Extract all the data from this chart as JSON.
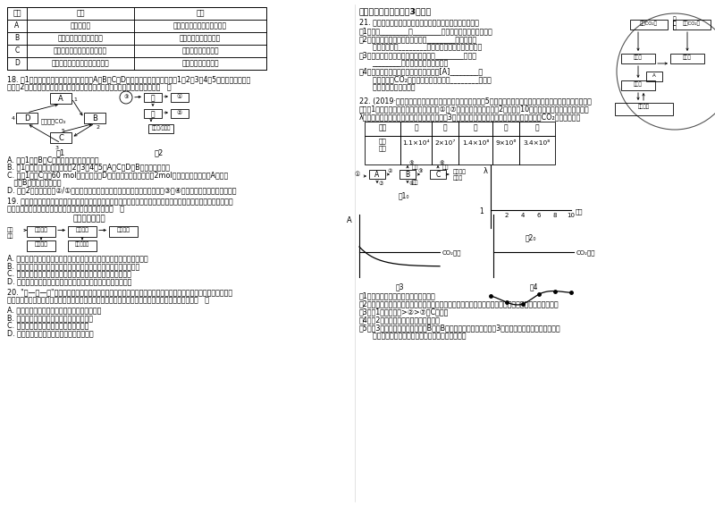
{
  "background_color": "#ffffff",
  "figsize": [
    8.0,
    5.66
  ],
  "dpi": 100,
  "table1_headers": [
    "选项",
    "方案",
    "目的"
  ],
  "table1_rows": [
    [
      "A",
      "建立沼气池",
      "有利于物质和能量的多级利用"
    ],
    [
      "B",
      "体外诱导胚胎干细胞分化",
      "培育供移植的组织器官"
    ],
    [
      "C",
      "培育试管苗、试管牛和克隆羊",
      "能保持全部母本性状"
    ],
    [
      "D",
      "用蛋白酶处理刚样的动物组织块",
      "制备动物细胞悬浮液"
    ]
  ],
  "q18_line1": "18. 图1是某生态系统碳循环示意图，其中A、B、C、D是生态系统内各生物成分，1、2、3、4、5表示有关的生理过",
  "q18_line2": "程。图2为该生态系统中某一食物链及各部分能量流动情况，下列说法错误的是（   ）",
  "q18_opts": [
    "A. 在图1中，B、C分别属于分解者、生产者",
    "B. 图1中表示呼吸作用过程的是2、3、4、5，A、C、D为B提供物质和能量",
    "C. 若图1中的C产生60 mol氧气，则流入D的能量一般不超过相当于2mol葡萄糖的能量；如果A发生癌",
    "   变，B的数量将不断增加",
    "D. 在图2的食物链中，②/①的比值代表兔与狼（生物之间）的能量传递效率；③和④分别是草和兔同化量的一部分"
  ],
  "q19_line1": "19. 随着城市化的发展，城市水污染问题日益突出，建立人工湿地公园是解决城市水污染的一种有效途径。下图是人工",
  "q19_line2": "湿地处理城市污水的示意图，则下列有关说法正确的是（   ）",
  "q19_diagram_title": "人工湿地示意图",
  "q19_opts": [
    "A. 批水植物严重在湿地边沿随随枯地高低分布不同，属于群落的垂直结构",
    "B. 流经该生态系统的总能量是大于该系统生产者所固定的全部太阳能",
    "C. 绿藻、黑藻可吸化降低污水中有机物，并用于自身的光合作用",
    "D. 人工湿地净化污水时，体现了该湿地生态系统的恢复力稳定性"
  ],
  "q20_line1": "20. \"稻—鸭—萍\"共作是一种新型的生态农业模式，其中水生植物萍（满江红）适合于鸭觅食环境，可作为鸭子的",
  "q20_line2": "饲料，鸭子觅食有着疏出并供肥，促进水稻生长，对此以模式中鸡的生态系统，下列描述不正确的是（   ）",
  "q20_opts": [
    "A. 生物群落由水稻、红萍、鸭子和有害虫出组成",
    "B. 政萍鸭子的数量是与红萍生长量保调平衡",
    "C. 鸭子既是初级消费者，又是次级消费者",
    "D. 水稻和红萍垂直分层，提高了光能利用率"
  ],
  "sec2_title": "二、填空题（本大题共3小题）",
  "q21_line": "21. 生态系统的碳循环过程如图所示，请分析回答下列问题：",
  "q21_subs": [
    "（1）碳在________和________之间的循环，称作碳循环。",
    "（2）大气中的二氧化碳通过植物的________作用进入生",
    "      物群落，并以________的形式在不同营养级间传递。",
    "（3）生物体中的碳几乎都要通过生物的________作用以",
    "      ________的形式返回无机环境中。",
    "（4）近年来由于人类大量开采利用图中的[A]________使",
    "      得大气中的CO₂含量逐渐增加，形成了________，已成",
    "      为全球环境问题之一。"
  ],
  "q22_intro1": "22. (2019·南充三模）某生态系统仅由甲、乙、丙、丁、戊5个种群形成一定的营养结构，表列出了各种群同化的能",
  "q22_intro2": "量，图1表示有关种群乙的能量变化，其中①～⑦表示能量值的多少，图2是种群乙10年内种群数量变化的情况，图中",
  "q22_intro3": "λ表示该种群数量是上一年种群数量的倍数，图3表示在一定光照强度下某植物的光合作用强度与CO₂浓度的关系。",
  "table2_headers": [
    "种群",
    "甲",
    "乙",
    "丙",
    "丁",
    "戊"
  ],
  "table2_values": [
    "同化能量",
    "1.1×10⁴",
    "2×10⁷",
    "1.4×10⁸",
    "9×10⁶",
    "3.4×10⁸"
  ],
  "q22_subs": [
    "（1）写出该生态系统中食物网食食链。",
    "（2）种群乙是该生态系统营养结构的第苦着布，若甲的数量减少，戊的数量（会或不会）发生显著变化。",
    "（3）图1中（数字）>②>⑦，C表示。",
    "（4）图2中占的种群年龄组成是衰退型。",
    "（5）图3若将优化照度匮，由纵中B点向B移动，若其他条件不变，图3中纵坐标含义改为二氧化碳吸收",
    "      速率，请在右图的坐标系中画出相应的变化曲线。"
  ]
}
